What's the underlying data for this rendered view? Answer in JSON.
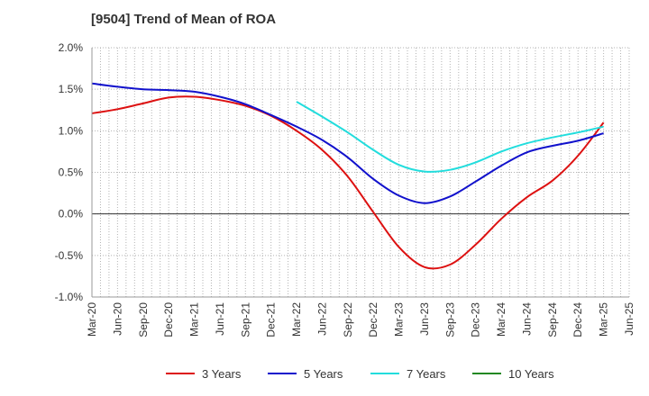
{
  "chart_data": {
    "type": "line",
    "title": "[9504]  Trend of Mean of ROA",
    "xlabel": "",
    "ylabel": "",
    "ylim": [
      -1.0,
      2.0
    ],
    "yticks": [
      "-1.0%",
      "-0.5%",
      "0.0%",
      "0.5%",
      "1.0%",
      "1.5%",
      "2.0%"
    ],
    "ytick_values": [
      -1.0,
      -0.5,
      0.0,
      0.5,
      1.0,
      1.5,
      2.0
    ],
    "categories": [
      "Mar-20",
      "Jun-20",
      "Sep-20",
      "Dec-20",
      "Mar-21",
      "Jun-21",
      "Sep-21",
      "Dec-21",
      "Mar-22",
      "Jun-22",
      "Sep-22",
      "Dec-22",
      "Mar-23",
      "Jun-23",
      "Sep-23",
      "Dec-23",
      "Mar-24",
      "Jun-24",
      "Sep-24",
      "Dec-24",
      "Mar-25",
      "Jun-25"
    ],
    "grid": true,
    "legend_position": "bottom",
    "series": [
      {
        "name": "3 Years",
        "color": "#dd1111",
        "values": [
          1.21,
          1.26,
          1.33,
          1.4,
          1.41,
          1.37,
          1.3,
          1.18,
          1.0,
          0.77,
          0.45,
          0.02,
          -0.4,
          -0.64,
          -0.61,
          -0.37,
          -0.06,
          0.2,
          0.4,
          0.7,
          1.1,
          null
        ]
      },
      {
        "name": "5 Years",
        "color": "#1111cc",
        "values": [
          1.57,
          1.53,
          1.5,
          1.49,
          1.47,
          1.41,
          1.32,
          1.19,
          1.05,
          0.89,
          0.68,
          0.42,
          0.22,
          0.13,
          0.21,
          0.39,
          0.58,
          0.74,
          0.82,
          0.88,
          0.97,
          null
        ]
      },
      {
        "name": "7 Years",
        "color": "#22dddd",
        "values": [
          null,
          null,
          null,
          null,
          null,
          null,
          null,
          null,
          1.35,
          1.17,
          0.98,
          0.77,
          0.59,
          0.51,
          0.53,
          0.62,
          0.75,
          0.85,
          0.92,
          0.98,
          1.05,
          null
        ]
      },
      {
        "name": "10 Years",
        "color": "#228822",
        "values": [
          null,
          null,
          null,
          null,
          null,
          null,
          null,
          null,
          null,
          null,
          null,
          null,
          null,
          null,
          null,
          null,
          null,
          null,
          null,
          null,
          null,
          null
        ]
      }
    ]
  }
}
